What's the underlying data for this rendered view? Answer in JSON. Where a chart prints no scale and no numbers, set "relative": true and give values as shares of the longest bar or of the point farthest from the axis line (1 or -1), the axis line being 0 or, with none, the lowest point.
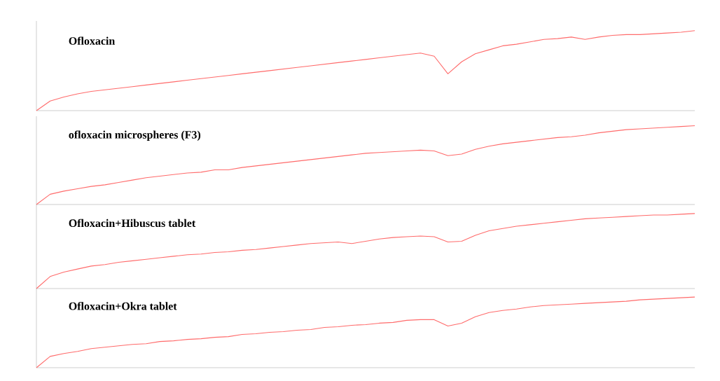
{
  "chart_data": [
    {
      "type": "line",
      "title": "Ofloxacin",
      "relative": true,
      "color": "#ff6b6b",
      "categories": [
        null,
        null,
        null,
        null,
        null,
        null,
        null,
        null,
        null,
        null,
        null,
        null,
        null,
        null,
        null,
        null,
        null,
        null,
        null,
        null,
        null,
        null,
        null,
        null,
        null,
        null,
        null,
        null,
        null,
        null,
        null,
        null,
        null,
        null,
        null,
        null,
        null,
        null,
        null,
        null,
        null,
        null,
        null,
        null,
        null,
        null,
        null,
        null,
        null
      ],
      "values": [
        0,
        0.12,
        0.17,
        0.21,
        0.24,
        0.26,
        0.28,
        0.3,
        0.32,
        0.34,
        0.36,
        0.38,
        0.4,
        0.42,
        0.44,
        0.46,
        0.48,
        0.5,
        0.52,
        0.54,
        0.56,
        0.58,
        0.6,
        0.62,
        0.64,
        0.66,
        0.68,
        0.7,
        0.72,
        0.68,
        0.46,
        0.61,
        0.71,
        0.76,
        0.81,
        0.83,
        0.86,
        0.89,
        0.9,
        0.92,
        0.89,
        0.92,
        0.94,
        0.95,
        0.95,
        0.96,
        0.97,
        0.98,
        1
      ]
    },
    {
      "type": "line",
      "title": "ofloxacin microspheres (F3)",
      "relative": true,
      "color": "#ff6b6b",
      "categories": [
        null,
        null,
        null,
        null,
        null,
        null,
        null,
        null,
        null,
        null,
        null,
        null,
        null,
        null,
        null,
        null,
        null,
        null,
        null,
        null,
        null,
        null,
        null,
        null,
        null,
        null,
        null,
        null,
        null,
        null,
        null,
        null,
        null,
        null,
        null,
        null,
        null,
        null,
        null,
        null,
        null,
        null,
        null,
        null,
        null,
        null,
        null,
        null,
        null
      ],
      "values": [
        0,
        0.13,
        0.17,
        0.2,
        0.23,
        0.25,
        0.28,
        0.31,
        0.34,
        0.36,
        0.38,
        0.4,
        0.41,
        0.44,
        0.44,
        0.47,
        0.49,
        0.51,
        0.53,
        0.55,
        0.57,
        0.59,
        0.61,
        0.63,
        0.65,
        0.66,
        0.67,
        0.68,
        0.69,
        0.68,
        0.62,
        0.64,
        0.7,
        0.74,
        0.77,
        0.79,
        0.81,
        0.83,
        0.85,
        0.86,
        0.88,
        0.91,
        0.93,
        0.95,
        0.96,
        0.97,
        0.98,
        0.99,
        1
      ]
    },
    {
      "type": "line",
      "title": "Ofloxacin+Hibuscus tablet",
      "relative": true,
      "color": "#ff6b6b",
      "categories": [
        null,
        null,
        null,
        null,
        null,
        null,
        null,
        null,
        null,
        null,
        null,
        null,
        null,
        null,
        null,
        null,
        null,
        null,
        null,
        null,
        null,
        null,
        null,
        null,
        null,
        null,
        null,
        null,
        null,
        null,
        null,
        null,
        null,
        null,
        null,
        null,
        null,
        null,
        null,
        null,
        null,
        null,
        null,
        null,
        null,
        null,
        null,
        null,
        null
      ],
      "values": [
        0,
        0.16,
        0.22,
        0.26,
        0.3,
        0.32,
        0.35,
        0.37,
        0.39,
        0.41,
        0.43,
        0.45,
        0.46,
        0.48,
        0.49,
        0.51,
        0.52,
        0.54,
        0.56,
        0.58,
        0.6,
        0.61,
        0.62,
        0.6,
        0.63,
        0.66,
        0.68,
        0.69,
        0.7,
        0.69,
        0.62,
        0.63,
        0.71,
        0.77,
        0.8,
        0.83,
        0.85,
        0.87,
        0.89,
        0.91,
        0.93,
        0.94,
        0.95,
        0.96,
        0.97,
        0.98,
        0.98,
        0.99,
        1
      ]
    },
    {
      "type": "line",
      "title": "Ofloxacin+Okra tablet",
      "relative": true,
      "color": "#ff6b6b",
      "categories": [
        null,
        null,
        null,
        null,
        null,
        null,
        null,
        null,
        null,
        null,
        null,
        null,
        null,
        null,
        null,
        null,
        null,
        null,
        null,
        null,
        null,
        null,
        null,
        null,
        null,
        null,
        null,
        null,
        null,
        null,
        null,
        null,
        null,
        null,
        null,
        null,
        null,
        null,
        null,
        null,
        null,
        null,
        null,
        null,
        null,
        null,
        null,
        null,
        null
      ],
      "values": [
        0,
        0.16,
        0.2,
        0.23,
        0.27,
        0.29,
        0.31,
        0.33,
        0.34,
        0.37,
        0.38,
        0.4,
        0.41,
        0.43,
        0.44,
        0.47,
        0.48,
        0.5,
        0.51,
        0.53,
        0.54,
        0.57,
        0.58,
        0.6,
        0.61,
        0.63,
        0.64,
        0.67,
        0.68,
        0.68,
        0.59,
        0.63,
        0.72,
        0.78,
        0.81,
        0.83,
        0.86,
        0.88,
        0.89,
        0.9,
        0.91,
        0.92,
        0.93,
        0.94,
        0.96,
        0.97,
        0.98,
        0.99,
        1
      ]
    }
  ]
}
